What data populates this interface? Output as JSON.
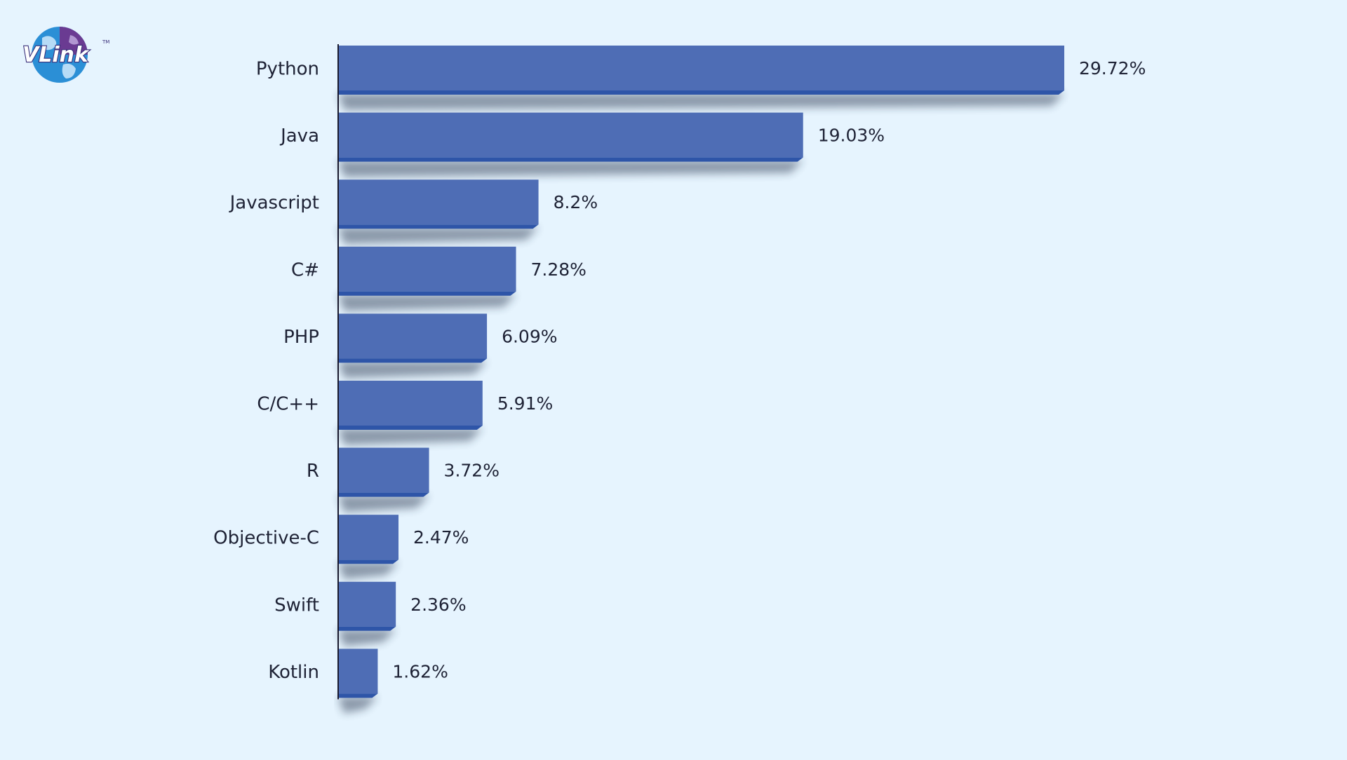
{
  "logo": {
    "text": "VLink",
    "trademark": "TM",
    "colors": {
      "globe_blue": "#2b8fd6",
      "globe_purple": "#6a3b92",
      "text": "#ffffff",
      "outline": "#3a2f7a"
    }
  },
  "chart_data": {
    "type": "bar",
    "orientation": "horizontal",
    "title": "",
    "xlabel": "",
    "ylabel": "",
    "categories": [
      "Python",
      "Java",
      "Javascript",
      "C#",
      "PHP",
      "C/C++",
      "R",
      "Objective-C",
      "Swift",
      "Kotlin"
    ],
    "values": [
      29.72,
      19.03,
      8.2,
      7.28,
      6.09,
      5.91,
      3.72,
      2.47,
      2.36,
      1.62
    ],
    "value_labels": [
      "29.72%",
      "19.03%",
      "8.2%",
      "7.28%",
      "6.09%",
      "5.91%",
      "3.72%",
      "2.47%",
      "2.36%",
      "1.62%"
    ],
    "xlim": [
      0,
      29.72
    ],
    "grid": false,
    "legend": "none",
    "colors": {
      "bar": "#4e6db5",
      "bar_edge": "#2e55a8",
      "shadow": "#1e2a44",
      "axis": "#1a1a2e",
      "text": "#1e2235",
      "background": "#e6f4fe"
    }
  }
}
